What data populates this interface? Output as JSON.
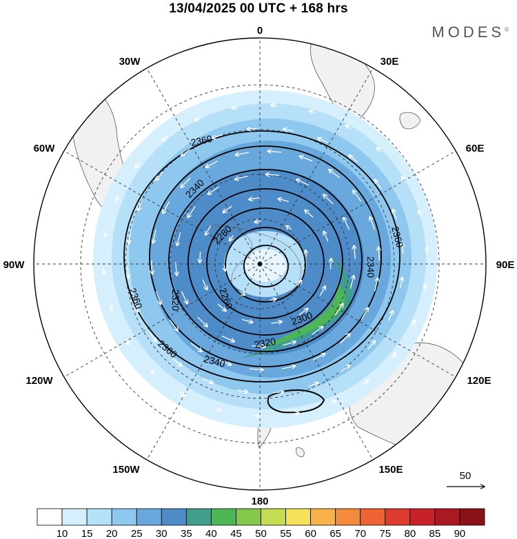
{
  "title": "13/04/2025  00 UTC  + 168 hrs",
  "brand": "MODES",
  "brand_mark": "©",
  "map": {
    "projection": "south-polar-stereographic",
    "longitude_labels": [
      {
        "text": "0",
        "lon": 0
      },
      {
        "text": "30E",
        "lon": 30
      },
      {
        "text": "60E",
        "lon": 60
      },
      {
        "text": "90E",
        "lon": 90
      },
      {
        "text": "120E",
        "lon": 120
      },
      {
        "text": "150E",
        "lon": 150
      },
      {
        "text": "180",
        "lon": 180
      },
      {
        "text": "150W",
        "lon": -150
      },
      {
        "text": "120W",
        "lon": -120
      },
      {
        "text": "90W",
        "lon": -90
      },
      {
        "text": "60W",
        "lon": -60
      },
      {
        "text": "30W",
        "lon": -30
      }
    ],
    "contour_labels": [
      "2360",
      "2340",
      "2280",
      "2260",
      "2320",
      "2300",
      "2320",
      "2340",
      "2360",
      "2360",
      "2340",
      "2360",
      "2320"
    ],
    "contour_label_values": [
      2360,
      2340,
      2280,
      2260,
      2320,
      2300,
      2320,
      2340,
      2360,
      2360,
      2340,
      2360,
      2320
    ],
    "wind_reference": {
      "value": "50"
    },
    "colorbar": {
      "colors": [
        "#ffffff",
        "#d6effd",
        "#b5e0f8",
        "#8ec8ef",
        "#68a8dd",
        "#4d8cc9",
        "#3f9e8e",
        "#4db655",
        "#86c84c",
        "#c5dc52",
        "#f6e15a",
        "#f7b24c",
        "#f48a3b",
        "#ec6334",
        "#dd3b2d",
        "#c8212b",
        "#aa1822",
        "#8a1118"
      ],
      "ticks": [
        "10",
        "15",
        "20",
        "25",
        "30",
        "35",
        "40",
        "45",
        "50",
        "55",
        "60",
        "65",
        "70",
        "75",
        "80",
        "85",
        "90"
      ]
    }
  }
}
